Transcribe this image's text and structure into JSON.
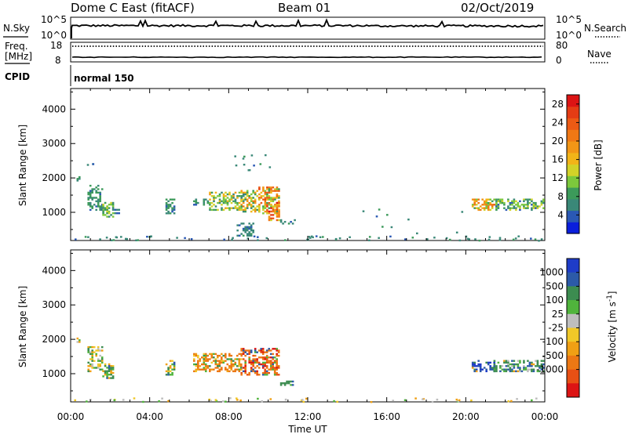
{
  "header": {
    "station": "Dome C East (fitACF)",
    "beam": "Beam 01",
    "date": "02/Oct/2019"
  },
  "nsky_panel": {
    "left_label": "N.Sky",
    "right_label": "N.Search",
    "tick_top_left": "10^5",
    "tick_bottom_left": "10^0",
    "tick_top_right": "10^5",
    "tick_bottom_right": "10^0"
  },
  "freq_panel": {
    "left_label_1": "Freq.",
    "left_label_2": "[MHz]",
    "right_label": "Nave",
    "tick_top_left": "18",
    "tick_bottom_left": "8",
    "tick_top_right": "80",
    "tick_bottom_right": "0"
  },
  "cpid": {
    "label": "CPID",
    "value": "normal 150"
  },
  "x_axis": {
    "label": "Time UT",
    "ticks": [
      "00:00",
      "04:00",
      "08:00",
      "12:00",
      "16:00",
      "20:00",
      "00:00"
    ],
    "tick_hours": [
      0,
      4,
      8,
      12,
      16,
      20,
      24
    ]
  },
  "chart_data": [
    {
      "type": "heatmap",
      "panel": "power",
      "ylabel": "Slant Range [km]",
      "yticks": [
        "1000",
        "2000",
        "3000",
        "4000"
      ],
      "ytick_values": [
        1000,
        2000,
        3000,
        4000
      ],
      "ylim": [
        180,
        4600
      ],
      "xlim": [
        0,
        24
      ],
      "colorbar": {
        "label": "Power [dB]",
        "ticks": [
          "4",
          "8",
          "12",
          "16",
          "20",
          "24",
          "28"
        ],
        "tick_values": [
          4,
          8,
          12,
          16,
          20,
          24,
          28
        ],
        "range": [
          0,
          30
        ],
        "colors": [
          "#0a1edc",
          "#2a58b4",
          "#3a8878",
          "#3c9a5a",
          "#7cc83c",
          "#d2d228",
          "#f2b418",
          "#f29616",
          "#f07814",
          "#ec5a14",
          "#e43c14",
          "#dc1414"
        ]
      },
      "clusters": [
        {
          "t": [
            0.3,
            0.45
          ],
          "r": [
            1900,
            2050
          ],
          "v": [
            6,
            10
          ]
        },
        {
          "t": [
            0.85,
            1.6
          ],
          "r": [
            1050,
            1800
          ],
          "v": [
            4,
            10
          ]
        },
        {
          "t": [
            1.6,
            2.1
          ],
          "r": [
            850,
            1300
          ],
          "v": [
            6,
            14
          ]
        },
        {
          "t": [
            2.2,
            2.4
          ],
          "r": [
            950,
            1100
          ],
          "v": [
            4,
            8
          ]
        },
        {
          "t": [
            4.8,
            5.2
          ],
          "r": [
            950,
            1400
          ],
          "v": [
            4,
            10
          ]
        },
        {
          "t": [
            6.2,
            7.0
          ],
          "r": [
            1200,
            1400
          ],
          "v": [
            4,
            10
          ]
        },
        {
          "t": [
            7.0,
            8.6
          ],
          "r": [
            1050,
            1600
          ],
          "v": [
            6,
            18
          ]
        },
        {
          "t": [
            8.6,
            9.5
          ],
          "r": [
            1000,
            1650
          ],
          "v": [
            6,
            22
          ]
        },
        {
          "t": [
            9.5,
            10.5
          ],
          "r": [
            950,
            1750
          ],
          "v": [
            8,
            26
          ]
        },
        {
          "t": [
            10.0,
            10.5
          ],
          "r": [
            750,
            1300
          ],
          "v": [
            14,
            28
          ]
        },
        {
          "t": [
            10.6,
            11.3
          ],
          "r": [
            650,
            800
          ],
          "v": [
            4,
            8
          ]
        },
        {
          "t": [
            8.4,
            9.2
          ],
          "r": [
            300,
            700
          ],
          "v": [
            4,
            8
          ]
        },
        {
          "t": [
            20.3,
            21.4
          ],
          "r": [
            1050,
            1400
          ],
          "v": [
            8,
            24
          ]
        },
        {
          "t": [
            21.4,
            23.9
          ],
          "r": [
            1050,
            1400
          ],
          "v": [
            4,
            14
          ]
        }
      ],
      "scatter": [
        {
          "t": [
            0.1,
            23.9
          ],
          "r": [
            200,
            330
          ],
          "v": [
            4,
            8
          ],
          "n": 70
        },
        {
          "t": [
            8.2,
            10.3
          ],
          "r": [
            2200,
            2700
          ],
          "v": [
            4,
            8
          ],
          "n": 12
        },
        {
          "t": [
            0.8,
            1.1
          ],
          "r": [
            2300,
            2450
          ],
          "v": [
            4,
            6
          ],
          "n": 3
        },
        {
          "t": [
            14.0,
            20.0
          ],
          "r": [
            300,
            1400
          ],
          "v": [
            4,
            8
          ],
          "n": 10
        }
      ]
    },
    {
      "type": "heatmap",
      "panel": "velocity",
      "ylabel": "Slant Range [km]",
      "yticks": [
        "1000",
        "2000",
        "3000",
        "4000"
      ],
      "ytick_values": [
        1000,
        2000,
        3000,
        4000
      ],
      "ylim": [
        180,
        4600
      ],
      "xlim": [
        0,
        24
      ],
      "colorbar": {
        "label": "Velocity [m s^-1]",
        "ticks": [
          "1000",
          "500",
          "100",
          "25",
          "-25",
          "-100",
          "-500",
          "-1000"
        ],
        "colors": [
          "#1e3cc8",
          "#2c5aa8",
          "#3c8c50",
          "#50b43c",
          "#bebebe",
          "#f0c828",
          "#f0a014",
          "#ec7814",
          "#e85014",
          "#dc1414"
        ]
      },
      "clusters": [
        {
          "t": [
            0.3,
            0.45
          ],
          "r": [
            1900,
            2050
          ],
          "v": "mix_neg"
        },
        {
          "t": [
            0.85,
            1.6
          ],
          "r": [
            1050,
            1800
          ],
          "v": "mix_neg"
        },
        {
          "t": [
            1.6,
            2.1
          ],
          "r": [
            850,
            1300
          ],
          "v": "mix"
        },
        {
          "t": [
            4.8,
            5.2
          ],
          "r": [
            950,
            1400
          ],
          "v": "mix"
        },
        {
          "t": [
            6.2,
            8.6
          ],
          "r": [
            1050,
            1600
          ],
          "v": "neg"
        },
        {
          "t": [
            8.6,
            10.5
          ],
          "r": [
            950,
            1750
          ],
          "v": "neg_strong"
        },
        {
          "t": [
            10.6,
            11.3
          ],
          "r": [
            650,
            800
          ],
          "v": "pos"
        },
        {
          "t": [
            20.3,
            21.4
          ],
          "r": [
            1050,
            1400
          ],
          "v": "pos_strong"
        },
        {
          "t": [
            21.4,
            23.9
          ],
          "r": [
            1050,
            1400
          ],
          "v": "pos"
        }
      ]
    }
  ]
}
